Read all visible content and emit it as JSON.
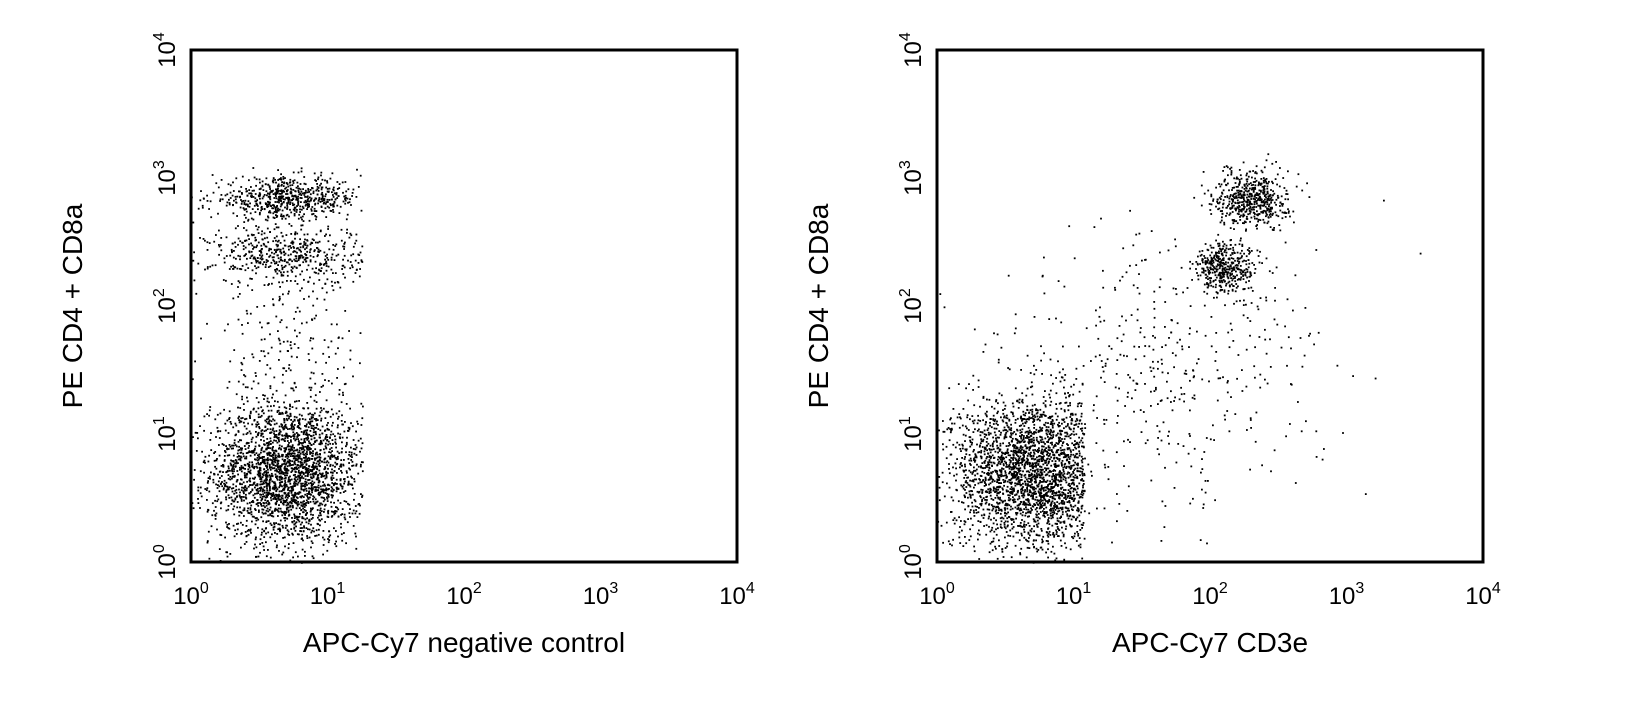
{
  "colors": {
    "background": "#ffffff",
    "dots": "#000000",
    "frame": "#000000"
  },
  "chart_data": [
    {
      "type": "scatter",
      "xlabel": "APC-Cy7 negative control",
      "ylabel": "PE CD4 + CD8a",
      "xscale": "log",
      "yscale": "log",
      "xlim": [
        1,
        10000
      ],
      "ylim": [
        1,
        10000
      ],
      "x_ticks": [
        {
          "base": "10",
          "exp": "0"
        },
        {
          "base": "10",
          "exp": "1"
        },
        {
          "base": "10",
          "exp": "2"
        },
        {
          "base": "10",
          "exp": "3"
        },
        {
          "base": "10",
          "exp": "4"
        }
      ],
      "y_ticks": [
        {
          "base": "10",
          "exp": "0"
        },
        {
          "base": "10",
          "exp": "1"
        },
        {
          "base": "10",
          "exp": "2"
        },
        {
          "base": "10",
          "exp": "3"
        },
        {
          "base": "10",
          "exp": "4"
        }
      ],
      "populations": [
        {
          "x_center": 5,
          "y_center": 5,
          "x_spread_decades": 0.28,
          "y_spread_decades": 0.28,
          "events": 2600,
          "x_max": 18
        },
        {
          "x_center": 5,
          "y_center": 700,
          "x_spread_decades": 0.28,
          "y_spread_decades": 0.08,
          "events": 650,
          "x_max": 18
        },
        {
          "x_center": 5,
          "y_center": 250,
          "x_spread_decades": 0.28,
          "y_spread_decades": 0.12,
          "events": 520,
          "x_max": 18
        },
        {
          "x_center": 5,
          "y_center": 40,
          "x_spread_decades": 0.3,
          "y_spread_decades": 0.35,
          "events": 200,
          "x_max": 18
        }
      ]
    },
    {
      "type": "scatter",
      "xlabel": "APC-Cy7 CD3e",
      "ylabel": "PE CD4 + CD8a",
      "xscale": "log",
      "yscale": "log",
      "xlim": [
        1,
        10000
      ],
      "ylim": [
        1,
        10000
      ],
      "x_ticks": [
        {
          "base": "10",
          "exp": "0"
        },
        {
          "base": "10",
          "exp": "1"
        },
        {
          "base": "10",
          "exp": "2"
        },
        {
          "base": "10",
          "exp": "3"
        },
        {
          "base": "10",
          "exp": "4"
        }
      ],
      "y_ticks": [
        {
          "base": "10",
          "exp": "0"
        },
        {
          "base": "10",
          "exp": "1"
        },
        {
          "base": "10",
          "exp": "2"
        },
        {
          "base": "10",
          "exp": "3"
        },
        {
          "base": "10",
          "exp": "4"
        }
      ],
      "populations": [
        {
          "x_center": 5,
          "y_center": 5,
          "x_spread_decades": 0.3,
          "y_spread_decades": 0.3,
          "events": 2800,
          "x_max": 12
        },
        {
          "x_center": 200,
          "y_center": 700,
          "x_spread_decades": 0.13,
          "y_spread_decades": 0.11,
          "events": 550
        },
        {
          "x_center": 130,
          "y_center": 200,
          "x_spread_decades": 0.12,
          "y_spread_decades": 0.1,
          "events": 420
        },
        {
          "x_center": 40,
          "x_spread_decades": 0.6,
          "y_center": 30,
          "y_spread_decades": 0.55,
          "events": 450
        }
      ]
    }
  ]
}
